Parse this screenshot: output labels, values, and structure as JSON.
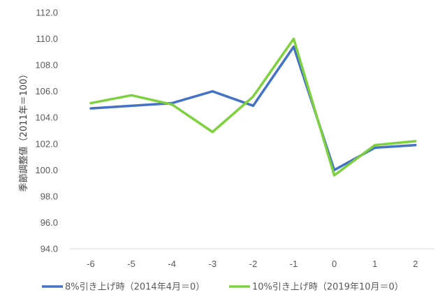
{
  "chart_data": {
    "type": "line",
    "x": [
      -6,
      -5,
      -4,
      -3,
      -2,
      -1,
      0,
      1,
      2
    ],
    "x_tick_labels": [
      "-6",
      "-5",
      "-4",
      "-3",
      "-2",
      "-1",
      "0",
      "1",
      "2"
    ],
    "y_tick_labels": [
      "94.0",
      "96.0",
      "98.0",
      "100.0",
      "102.0",
      "104.0",
      "106.0",
      "108.0",
      "110.0",
      "112.0"
    ],
    "ylim": [
      94,
      112
    ],
    "ylabel": "季節調整値（2011年＝100）",
    "xlabel": "",
    "title": "",
    "grid": false,
    "legend_position": "bottom",
    "series": [
      {
        "name": "8%引き上げ時（2014年4月＝0）",
        "color": "#4472C4",
        "values": [
          104.7,
          104.9,
          105.1,
          106.0,
          104.9,
          109.4,
          100.0,
          101.7,
          101.9
        ]
      },
      {
        "name": "10%引き上げ時（2019年10月＝0）",
        "color": "#7DD13F",
        "values": [
          105.1,
          105.7,
          105.0,
          102.9,
          105.6,
          110.0,
          99.6,
          101.9,
          102.2
        ]
      }
    ]
  }
}
